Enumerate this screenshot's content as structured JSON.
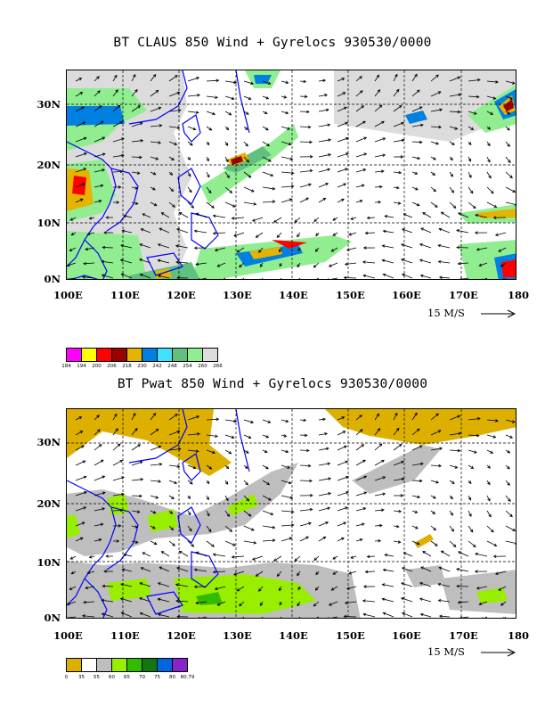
{
  "panel1": {
    "title": "BT CLAUS 850 Wind + Gyrelocs 930530/0000",
    "lat_labels": [
      "30N",
      "20N",
      "10N",
      "0N"
    ],
    "lon_labels": [
      "100E",
      "110E",
      "120E",
      "130E",
      "140E",
      "150E",
      "160E",
      "170E",
      "180"
    ],
    "scale_label": "15 M/S",
    "colorbar": {
      "colors": [
        "#ff00ff",
        "#ffff00",
        "#ff0000",
        "#990000",
        "#e5b400",
        "#0080e0",
        "#40e0ff",
        "#60c080",
        "#90ee90",
        "#dcdcdc"
      ],
      "ticks": [
        "184",
        "194",
        "200",
        "206",
        "218",
        "230",
        "242",
        "248",
        "254",
        "260",
        "266"
      ]
    }
  },
  "panel2": {
    "title": "BT Pwat 850 Wind + Gyrelocs 930530/0000",
    "lat_labels": [
      "30N",
      "20N",
      "10N",
      "0N"
    ],
    "lon_labels": [
      "100E",
      "110E",
      "120E",
      "130E",
      "140E",
      "150E",
      "160E",
      "170E",
      "180"
    ],
    "scale_label": "15 M/S",
    "colorbar": {
      "colors": [
        "#ddb000",
        "#ffffff",
        "#bebebe",
        "#99ee00",
        "#33bb00",
        "#117711",
        "#0066dd",
        "#8822cc"
      ],
      "ticks": [
        "0",
        "35",
        "55",
        "60",
        "65",
        "70",
        "75",
        "80",
        "80.79"
      ]
    }
  }
}
